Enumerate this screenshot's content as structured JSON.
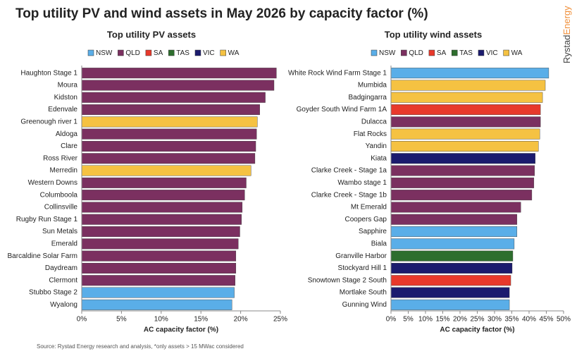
{
  "title": "Top utility PV and wind assets in May 2026 by capacity factor (%)",
  "source": "Source: Rystad Energy research and analysis, *only assets > 15 MWac considered",
  "logo": {
    "first": "Rystad",
    "second": "Energy"
  },
  "chart_data": [
    {
      "type": "barh",
      "title": "Top utility PV assets",
      "xlabel": "AC capacity factor (%)",
      "legend": [
        {
          "name": "NSW",
          "color": "#5aaee8"
        },
        {
          "name": "QLD",
          "color": "#7b3060"
        },
        {
          "name": "SA",
          "color": "#e8392b"
        },
        {
          "name": "TAS",
          "color": "#2e6e2e"
        },
        {
          "name": "VIC",
          "color": "#1b1b6e"
        },
        {
          "name": "WA",
          "color": "#f5c242"
        }
      ],
      "categories": [
        "Haughton Stage 1",
        "Moura",
        "Kidston",
        "Edenvale",
        "Greenough river 1",
        "Aldoga",
        "Clare",
        "Ross River",
        "Merredin",
        "Western Downs",
        "Columboola",
        "Collinsville",
        "Rugby Run Stage 1",
        "Sun Metals",
        "Emerald",
        "Barcaldine Solar Farm",
        "Daydream",
        "Clermont",
        "Stubbo Stage 2",
        "Wyalong"
      ],
      "values": [
        24.5,
        24.2,
        23.1,
        22.4,
        22.1,
        22.0,
        21.9,
        21.8,
        21.3,
        20.7,
        20.5,
        20.2,
        20.1,
        19.9,
        19.7,
        19.4,
        19.4,
        19.3,
        19.2,
        18.9
      ],
      "colors": [
        "#7b3060",
        "#7b3060",
        "#7b3060",
        "#7b3060",
        "#f5c242",
        "#7b3060",
        "#7b3060",
        "#7b3060",
        "#f5c242",
        "#7b3060",
        "#7b3060",
        "#7b3060",
        "#7b3060",
        "#7b3060",
        "#7b3060",
        "#7b3060",
        "#7b3060",
        "#7b3060",
        "#5aaee8",
        "#5aaee8"
      ],
      "xlim": [
        0,
        25
      ],
      "xticks": [
        {
          "value": 0,
          "label": "0%"
        },
        {
          "value": 5,
          "label": "5%"
        },
        {
          "value": 10,
          "label": "10%"
        },
        {
          "value": 15,
          "label": "15%"
        },
        {
          "value": 20,
          "label": "20%"
        },
        {
          "value": 25,
          "label": "25%"
        }
      ]
    },
    {
      "type": "barh",
      "title": "Top utility wind assets",
      "xlabel": "AC capacity factor (%)",
      "legend": [
        {
          "name": "NSW",
          "color": "#5aaee8"
        },
        {
          "name": "QLD",
          "color": "#7b3060"
        },
        {
          "name": "SA",
          "color": "#e8392b"
        },
        {
          "name": "TAS",
          "color": "#2e6e2e"
        },
        {
          "name": "VIC",
          "color": "#1b1b6e"
        },
        {
          "name": "WA",
          "color": "#f5c242"
        }
      ],
      "categories": [
        "White Rock Wind Farm Stage 1",
        "Mumbida",
        "Badgingarra",
        "Goyder South Wind Farm 1A",
        "Dulacca",
        "Flat Rocks",
        "Yandin",
        "Kiata",
        "Clarke Creek - Stage 1a",
        "Wambo stage 1",
        "Clarke Creek - Stage 1b",
        "Mt Emerald",
        "Coopers Gap",
        "Sapphire",
        "Biala",
        "Granville Harbor",
        "Stockyard Hill 1",
        "Snowtown Stage 2 South",
        "Mortlake South",
        "Gunning Wind"
      ],
      "values": [
        45.7,
        44.7,
        43.9,
        43.3,
        43.3,
        43.1,
        42.7,
        41.8,
        41.6,
        41.4,
        40.8,
        37.6,
        36.5,
        36.5,
        35.7,
        35.3,
        35.1,
        34.7,
        34.3,
        34.3
      ],
      "colors": [
        "#5aaee8",
        "#f5c242",
        "#f5c242",
        "#e8392b",
        "#7b3060",
        "#f5c242",
        "#f5c242",
        "#1b1b6e",
        "#7b3060",
        "#7b3060",
        "#7b3060",
        "#7b3060",
        "#7b3060",
        "#5aaee8",
        "#5aaee8",
        "#2e6e2e",
        "#1b1b6e",
        "#e8392b",
        "#1b1b6e",
        "#5aaee8"
      ],
      "xlim": [
        0,
        50
      ],
      "xticks": [
        {
          "value": 0,
          "label": "0%"
        },
        {
          "value": 5,
          "label": "5%"
        },
        {
          "value": 10,
          "label": "10%"
        },
        {
          "value": 15,
          "label": "15%"
        },
        {
          "value": 20,
          "label": "20%"
        },
        {
          "value": 25,
          "label": "25%"
        },
        {
          "value": 30,
          "label": "30%"
        },
        {
          "value": 35,
          "label": "35%"
        },
        {
          "value": 40,
          "label": "40%"
        },
        {
          "value": 45,
          "label": "45%"
        },
        {
          "value": 50,
          "label": "50%"
        }
      ]
    }
  ]
}
